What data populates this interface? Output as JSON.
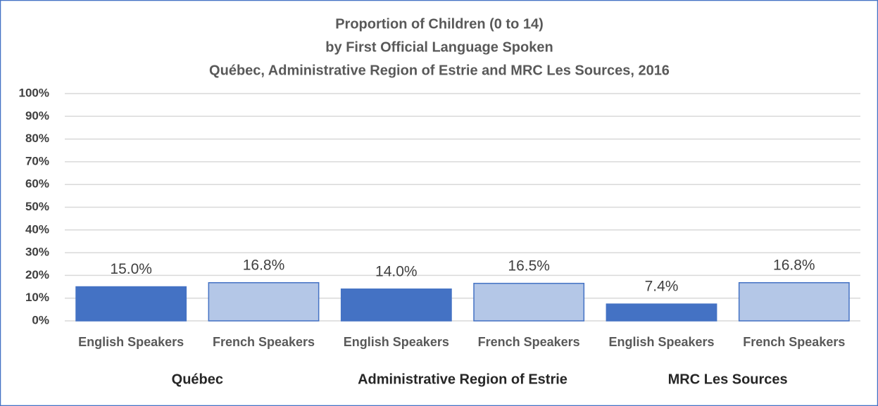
{
  "chart_data": {
    "type": "bar",
    "title": [
      "Proportion of Children (0 to 14)",
      "by First Official Language Spoken",
      "Québec, Administrative Region of Estrie and MRC Les Sources, 2016"
    ],
    "categories": [
      "English Speakers",
      "French Speakers",
      "English Speakers",
      "French Speakers",
      "English Speakers",
      "French Speakers"
    ],
    "groups": [
      "Québec",
      "Administrative Region of Estrie",
      "MRC Les Sources"
    ],
    "values": [
      15.0,
      16.8,
      14.0,
      16.5,
      7.4,
      16.8
    ],
    "value_labels": [
      "15.0%",
      "16.8%",
      "14.0%",
      "16.5%",
      "7.4%",
      "16.8%"
    ],
    "colors": [
      "#4472c4",
      "#b4c7e7",
      "#4472c4",
      "#b4c7e7",
      "#4472c4",
      "#b4c7e7"
    ],
    "edge_color": "#4472c4",
    "ylim": [
      0,
      100
    ],
    "yticks": [
      {
        "value": 0,
        "label": "0%"
      },
      {
        "value": 10,
        "label": "10%"
      },
      {
        "value": 20,
        "label": "20%"
      },
      {
        "value": 30,
        "label": "30%"
      },
      {
        "value": 40,
        "label": "40%"
      },
      {
        "value": 50,
        "label": "50%"
      },
      {
        "value": 60,
        "label": "60%"
      },
      {
        "value": 70,
        "label": "70%"
      },
      {
        "value": 80,
        "label": "80%"
      },
      {
        "value": 90,
        "label": "90%"
      },
      {
        "value": 100,
        "label": "100%"
      }
    ],
    "grid": true
  }
}
